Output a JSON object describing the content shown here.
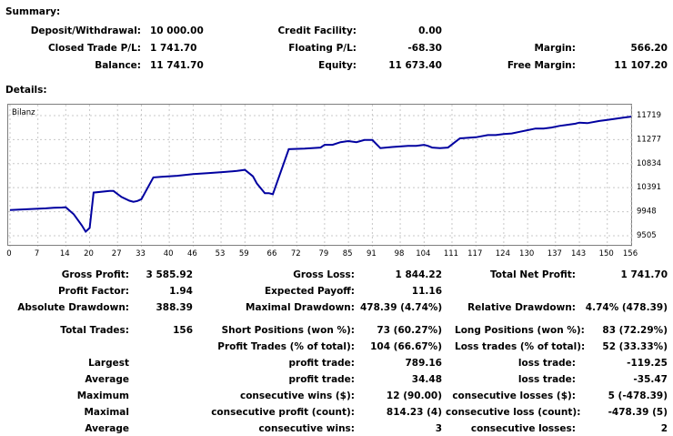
{
  "summary": {
    "title": "Summary:",
    "deposit_label": "Deposit/Withdrawal:",
    "deposit_value": "10 000.00",
    "credit_label": "Credit Facility:",
    "credit_value": "0.00",
    "closed_pl_label": "Closed Trade P/L:",
    "closed_pl_value": "1 741.70",
    "floating_pl_label": "Floating P/L:",
    "floating_pl_value": "-68.30",
    "margin_label": "Margin:",
    "margin_value": "566.20",
    "balance_label": "Balance:",
    "balance_value": "11 741.70",
    "equity_label": "Equity:",
    "equity_value": "11 673.40",
    "free_margin_label": "Free Margin:",
    "free_margin_value": "11 107.20"
  },
  "details": {
    "title": "Details:",
    "gross_profit_label": "Gross Profit:",
    "gross_profit_value": "3 585.92",
    "gross_loss_label": "Gross Loss:",
    "gross_loss_value": "1 844.22",
    "net_profit_label": "Total Net Profit:",
    "net_profit_value": "1 741.70",
    "profit_factor_label": "Profit Factor:",
    "profit_factor_value": "1.94",
    "expected_payoff_label": "Expected Payoff:",
    "expected_payoff_value": "11.16",
    "abs_dd_label": "Absolute Drawdown:",
    "abs_dd_value": "388.39",
    "max_dd_label": "Maximal Drawdown:",
    "max_dd_value": "478.39 (4.74%)",
    "rel_dd_label": "Relative Drawdown:",
    "rel_dd_value": "4.74% (478.39)",
    "total_trades_label": "Total Trades:",
    "total_trades_value": "156",
    "short_label": "Short Positions (won %):",
    "short_value": "73 (60.27%)",
    "long_label": "Long Positions (won %):",
    "long_value": "83 (72.29%)",
    "profit_trades_label": "Profit Trades (% of total):",
    "profit_trades_value": "104 (66.67%)",
    "loss_trades_label": "Loss trades (% of total):",
    "loss_trades_value": "52 (33.33%)",
    "largest_label": "Largest",
    "largest_profit_label": "profit trade:",
    "largest_profit_value": "789.16",
    "largest_loss_label": "loss trade:",
    "largest_loss_value": "-119.25",
    "average_label": "Average",
    "average_profit_label": "profit trade:",
    "average_profit_value": "34.48",
    "average_loss_label": "loss trade:",
    "average_loss_value": "-35.47",
    "maximum_label": "Maximum",
    "max_cons_wins_label": "consecutive wins ($):",
    "max_cons_wins_value": "12 (90.00)",
    "max_cons_losses_label": "consecutive losses ($):",
    "max_cons_losses_value": "5 (-478.39)",
    "maximal_label": "Maximal",
    "maximal_profit_label": "consecutive profit (count):",
    "maximal_profit_value": "814.23 (4)",
    "maximal_loss_label": "consecutive loss (count):",
    "maximal_loss_value": "-478.39 (5)",
    "average2_label": "Average",
    "avg_cons_wins_label": "consecutive wins:",
    "avg_cons_wins_value": "3",
    "avg_cons_losses_label": "consecutive losses:",
    "avg_cons_losses_value": "2"
  },
  "chart_data": {
    "type": "line",
    "title": "Bilanz",
    "xlabel": "",
    "ylabel": "",
    "x_ticks": [
      "0",
      "7",
      "14",
      "20",
      "27",
      "33",
      "40",
      "46",
      "53",
      "59",
      "66",
      "72",
      "79",
      "85",
      "91",
      "98",
      "104",
      "111",
      "117",
      "124",
      "130",
      "137",
      "143",
      "150",
      "156"
    ],
    "y_ticks": [
      "11719",
      "11277",
      "10834",
      "10391",
      "9948",
      "9505"
    ],
    "ylim": [
      9505,
      11719
    ],
    "xlim": [
      0,
      156
    ],
    "grid": true,
    "line_color": "#0000a0",
    "series": [
      {
        "name": "",
        "x": [
          0,
          3,
          6,
          9,
          11,
          13,
          14,
          16,
          18,
          19,
          20,
          21,
          25,
          26,
          28,
          30,
          31,
          32,
          33,
          36,
          38,
          42,
          46,
          50,
          54,
          57,
          59,
          61,
          62,
          64,
          65,
          66,
          70,
          74,
          78,
          79,
          81,
          83,
          85,
          87,
          89,
          91,
          93,
          96,
          98,
          100,
          102,
          104,
          105,
          106,
          108,
          110,
          113,
          115,
          117,
          120,
          122,
          124,
          126,
          128,
          130,
          132,
          134,
          136,
          138,
          140,
          142,
          143,
          145,
          148,
          150,
          152,
          154,
          156
        ],
        "y": [
          9980,
          9990,
          10000,
          10010,
          10020,
          10025,
          10030,
          9900,
          9700,
          9580,
          9650,
          10300,
          10330,
          10330,
          10220,
          10150,
          10130,
          10145,
          10180,
          10580,
          10590,
          10610,
          10640,
          10660,
          10680,
          10700,
          10720,
          10600,
          10470,
          10290,
          10290,
          10270,
          11100,
          11110,
          11130,
          11180,
          11180,
          11230,
          11250,
          11230,
          11270,
          11270,
          11120,
          11140,
          11150,
          11160,
          11160,
          11180,
          11160,
          11130,
          11120,
          11130,
          11300,
          11310,
          11320,
          11360,
          11360,
          11380,
          11390,
          11420,
          11450,
          11480,
          11480,
          11500,
          11530,
          11550,
          11570,
          11590,
          11580,
          11620,
          11640,
          11660,
          11680,
          11700
        ]
      }
    ]
  }
}
